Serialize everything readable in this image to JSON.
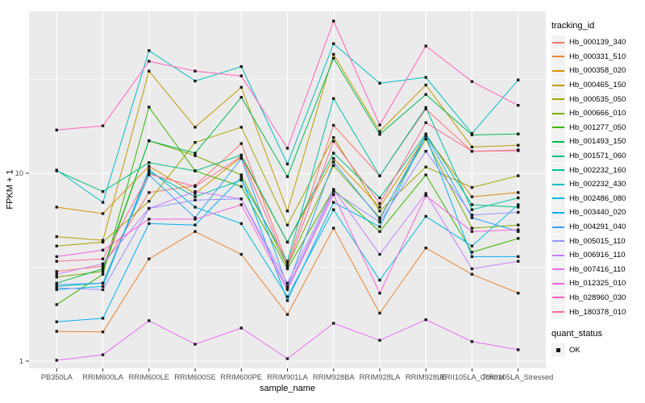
{
  "chart_data": {
    "type": "line",
    "title": "",
    "xlabel": "sample_name",
    "ylabel": "FPKM + 1",
    "x_categories": [
      "PB350LA",
      "RRIM600LA",
      "RRIM600LE",
      "RRIM600SE",
      "RRIM600PE",
      "RRIM901LA",
      "RRIM928BA",
      "RRIM928LA",
      "RRIM928LE",
      "RRII105LA_Control",
      "RRII105LA_Stressed"
    ],
    "y_scale": "log10",
    "y_ticks": [
      1,
      10
    ],
    "y_minor_ticks": [
      3.162,
      31.62
    ],
    "ylim": [
      0.92,
      73
    ],
    "grid": true,
    "legend_position": "right",
    "legend_titles": {
      "color": "tracking_id",
      "shape": "quant_status"
    },
    "quant_status_value": "OK",
    "marker": "black-square",
    "panel_bg": "#EBEBEB",
    "grid_color": "#FFFFFF",
    "tick_label_color": "#4D4D4D",
    "series": [
      {
        "name": "Hb_000139_340",
        "color": "#F8766D",
        "values": [
          3.0,
          3.2,
          7.9,
          8.6,
          14.4,
          3.3,
          18.0,
          9.7,
          22.0,
          13.1,
          13.3
        ]
      },
      {
        "name": "Hb_000331_510",
        "color": "#EA8331",
        "values": [
          1.44,
          1.43,
          3.5,
          4.9,
          3.7,
          1.77,
          5.1,
          1.8,
          4.0,
          2.9,
          2.3
        ]
      },
      {
        "name": "Hb_000358_020",
        "color": "#D89000",
        "values": [
          6.6,
          6.1,
          10.9,
          7.8,
          12.2,
          4.3,
          12.0,
          6.6,
          15.8,
          7.5,
          7.9
        ]
      },
      {
        "name": "Hb_000465_150",
        "color": "#C09B00",
        "values": [
          4.6,
          4.4,
          35.0,
          17.6,
          28.7,
          6.3,
          43.0,
          16.7,
          29.5,
          13.8,
          14.1
        ]
      },
      {
        "name": "Hb_000535_050",
        "color": "#A3A500",
        "values": [
          4.1,
          4.3,
          7.1,
          14.6,
          17.6,
          5.3,
          15.5,
          6.3,
          10.8,
          8.4,
          9.7
        ]
      },
      {
        "name": "Hb_000666_010",
        "color": "#7CAE00",
        "values": [
          2.8,
          3.0,
          14.9,
          12.4,
          9.8,
          3.2,
          11.0,
          5.8,
          15.2,
          5.1,
          5.3
        ]
      },
      {
        "name": "Hb_001277_050",
        "color": "#39B600",
        "values": [
          2.0,
          2.9,
          22.5,
          10.3,
          8.5,
          3.1,
          8.2,
          4.9,
          9.8,
          3.8,
          4.5
        ]
      },
      {
        "name": "Hb_001493_150",
        "color": "#00BB4E",
        "values": [
          2.6,
          3.1,
          14.9,
          12.8,
          25.4,
          9.6,
          41.0,
          16.1,
          26.3,
          16.0,
          16.2
        ]
      },
      {
        "name": "Hb_001571_060",
        "color": "#00BF7D",
        "values": [
          10.3,
          8.0,
          11.4,
          10.3,
          12.5,
          4.3,
          12.8,
          7.4,
          16.2,
          6.8,
          6.6
        ]
      },
      {
        "name": "Hb_002232_160",
        "color": "#00C1A3",
        "values": [
          2.5,
          2.6,
          10.2,
          7.5,
          9.2,
          3.4,
          25.0,
          9.7,
          22.4,
          6.4,
          7.4
        ]
      },
      {
        "name": "Hb_002232_430",
        "color": "#00BFC4",
        "values": [
          10.4,
          7.0,
          45.0,
          31.0,
          37.0,
          11.2,
          49.0,
          30.2,
          32.4,
          16.3,
          31.4
        ]
      },
      {
        "name": "Hb_002486_080",
        "color": "#00BAE0",
        "values": [
          2.4,
          2.5,
          10.5,
          6.6,
          5.4,
          2.2,
          6.4,
          2.7,
          5.9,
          4.1,
          6.8
        ]
      },
      {
        "name": "Hb_003440_020",
        "color": "#00B0F6",
        "values": [
          1.62,
          1.69,
          5.4,
          5.3,
          9.5,
          2.1,
          7.0,
          5.2,
          15.9,
          3.6,
          3.6
        ]
      },
      {
        "name": "Hb_004291_040",
        "color": "#35A2FF",
        "values": [
          2.55,
          2.6,
          9.8,
          5.8,
          12.0,
          2.5,
          11.5,
          5.7,
          16.0,
          5.8,
          4.9
        ]
      },
      {
        "name": "Hb_005015_110",
        "color": "#9590FF",
        "values": [
          2.45,
          2.4,
          6.5,
          7.2,
          7.3,
          2.45,
          8.0,
          5.5,
          13.1,
          6.0,
          6.2
        ]
      },
      {
        "name": "Hb_006916_110",
        "color": "#C77CFF",
        "values": [
          2.9,
          3.3,
          6.5,
          8.0,
          7.3,
          2.6,
          8.2,
          3.7,
          7.8,
          3.1,
          3.4
        ]
      },
      {
        "name": "Hb_007416_110",
        "color": "#E76BF3",
        "values": [
          1.01,
          1.08,
          1.64,
          1.23,
          1.5,
          1.03,
          1.59,
          1.29,
          1.66,
          1.27,
          1.15
        ]
      },
      {
        "name": "Hb_012325_010",
        "color": "#FA62DB",
        "values": [
          3.6,
          3.9,
          5.7,
          5.7,
          6.8,
          2.4,
          7.7,
          2.3,
          7.6,
          4.9,
          5.0
        ]
      },
      {
        "name": "Hb_028960_030",
        "color": "#FF62BC",
        "values": [
          17.0,
          17.9,
          39.5,
          35.0,
          33.0,
          13.6,
          64.7,
          18.1,
          47.6,
          30.8,
          23.0
        ]
      },
      {
        "name": "Hb_180378_010",
        "color": "#FF6A98",
        "values": [
          3.4,
          3.5,
          9.9,
          8.5,
          12.3,
          3.2,
          14.8,
          6.9,
          18.6,
          13.1,
          13.2
        ]
      }
    ]
  }
}
